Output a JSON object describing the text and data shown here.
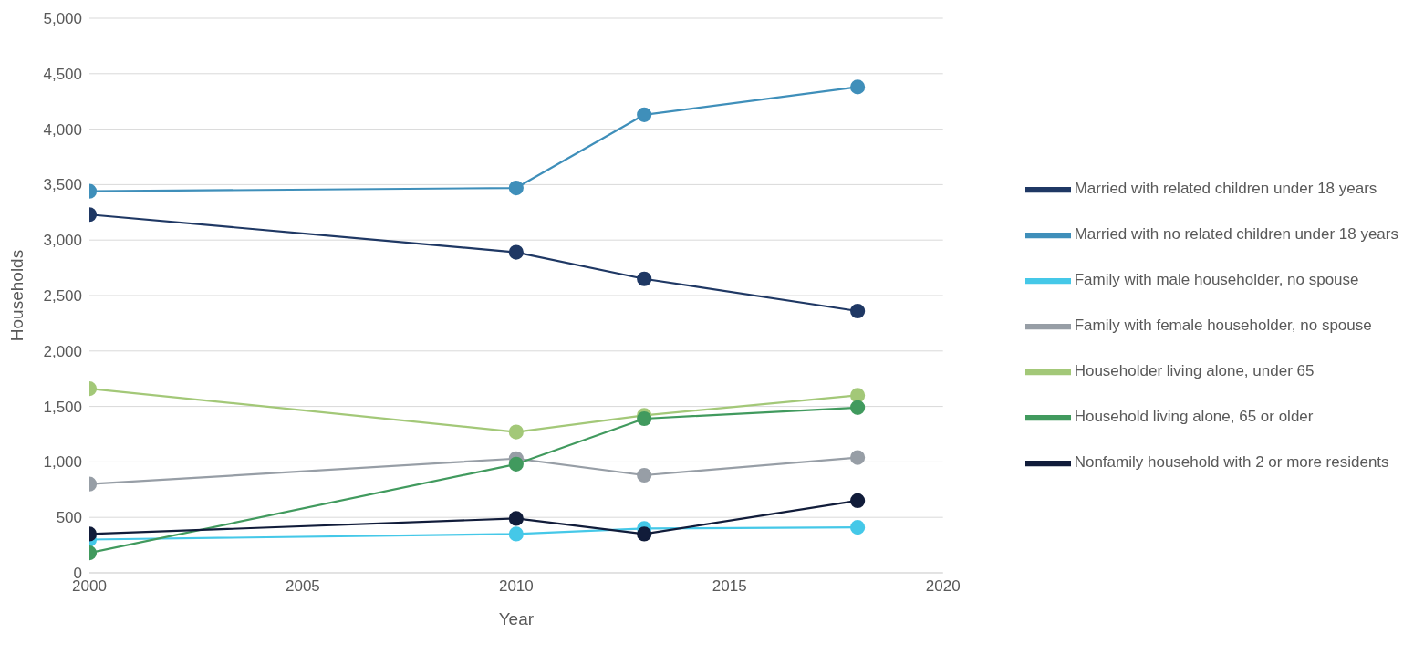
{
  "chart_data": {
    "type": "line",
    "xlabel": "Year",
    "ylabel": "Households",
    "x": [
      2000,
      2010,
      2013,
      2018
    ],
    "xlim": [
      2000,
      2020
    ],
    "xticks": [
      2000,
      2005,
      2010,
      2015,
      2020
    ],
    "ylim": [
      0,
      5000
    ],
    "yticks": [
      {
        "value": 0,
        "label": "0"
      },
      {
        "value": 500,
        "label": "500"
      },
      {
        "value": 1000,
        "label": "1,000"
      },
      {
        "value": 1500,
        "label": "1,500"
      },
      {
        "value": 2000,
        "label": "2,000"
      },
      {
        "value": 2500,
        "label": "2,500"
      },
      {
        "value": 3000,
        "label": "3,000"
      },
      {
        "value": 3500,
        "label": "3,500"
      },
      {
        "value": 4000,
        "label": "4,000"
      },
      {
        "value": 4500,
        "label": "4,500"
      },
      {
        "value": 5000,
        "label": "5,000"
      }
    ],
    "grid": "y",
    "legend": "right",
    "marker": "circle",
    "series": [
      {
        "name": "Married with related children under 18 years",
        "color": "#1f3864",
        "values": [
          3230,
          2890,
          2650,
          2360
        ]
      },
      {
        "name": "Married with no related children under 18 years",
        "color": "#3f8fba",
        "values": [
          3440,
          3470,
          4130,
          4380
        ]
      },
      {
        "name": "Family with male householder, no spouse",
        "color": "#45c8e8",
        "values": [
          300,
          350,
          400,
          410
        ]
      },
      {
        "name": "Family with female householder, no spouse",
        "color": "#979ea6",
        "values": [
          800,
          1030,
          880,
          1040
        ]
      },
      {
        "name": "Householder living alone, under 65",
        "color": "#a3c878",
        "values": [
          1660,
          1270,
          1420,
          1600
        ]
      },
      {
        "name": "Household living alone, 65 or older",
        "color": "#419a5e",
        "values": [
          180,
          980,
          1390,
          1490
        ]
      },
      {
        "name": "Nonfamily household with 2 or more residents",
        "color": "#111c3a",
        "values": [
          350,
          490,
          350,
          650
        ]
      }
    ]
  }
}
